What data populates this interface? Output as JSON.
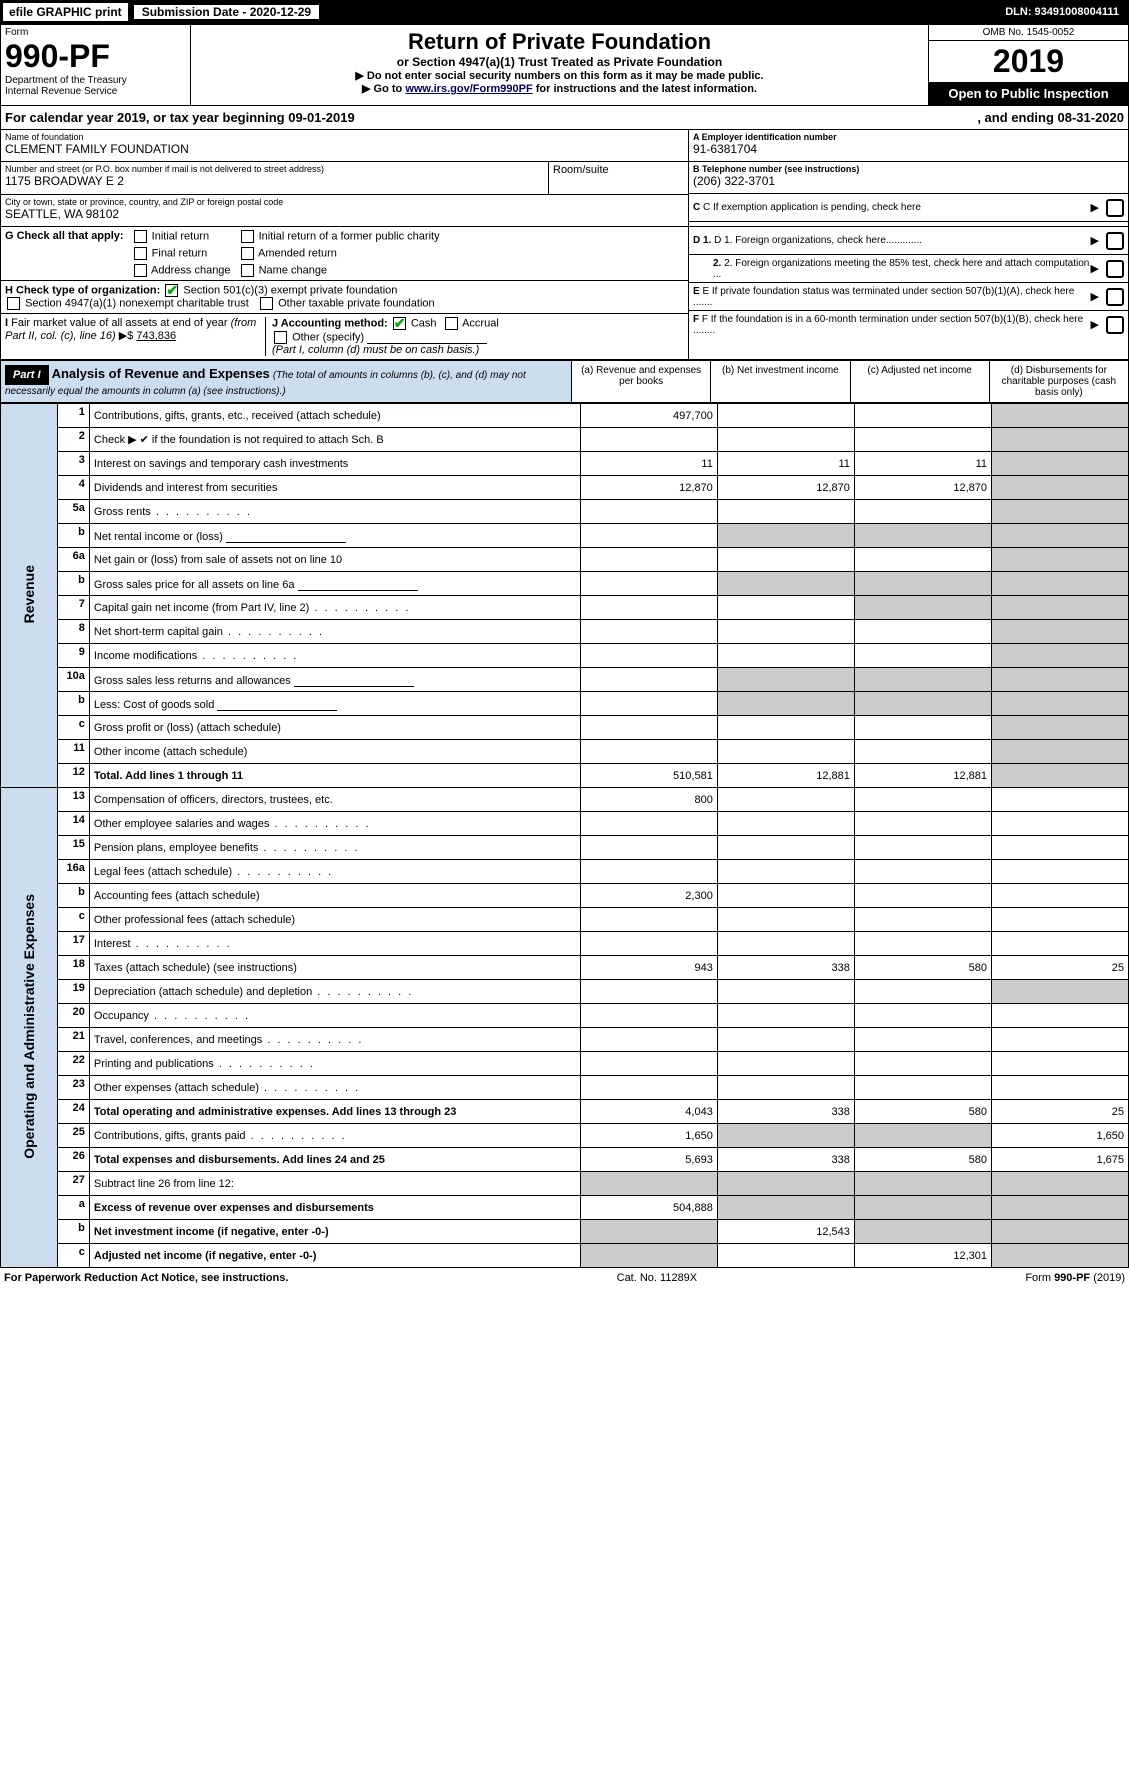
{
  "header": {
    "efile_label": "efile GRAPHIC print",
    "sub_date_label": "Submission Date - 2020-12-29",
    "dln": "DLN: 93491008004111"
  },
  "title": {
    "form_word": "Form",
    "form_num": "990-PF",
    "dept": "Department of the Treasury",
    "irs": "Internal Revenue Service",
    "main": "Return of Private Foundation",
    "sub": "or Section 4947(a)(1) Trust Treated as Private Foundation",
    "instr1": "▶ Do not enter social security numbers on this form as it may be made public.",
    "instr2_pre": "▶ Go to ",
    "instr2_link": "www.irs.gov/Form990PF",
    "instr2_post": " for instructions and the latest information.",
    "omb": "OMB No. 1545-0052",
    "year": "2019",
    "open": "Open to Public Inspection"
  },
  "cal": {
    "text1": "For calendar year 2019, or tax year beginning 09-01-2019",
    "text2": ", and ending 08-31-2020"
  },
  "info": {
    "name_lbl": "Name of foundation",
    "name": "CLEMENT FAMILY FOUNDATION",
    "addr_lbl": "Number and street (or P.O. box number if mail is not delivered to street address)",
    "addr": "1175 BROADWAY E 2",
    "room_lbl": "Room/suite",
    "city_lbl": "City or town, state or province, country, and ZIP or foreign postal code",
    "city": "SEATTLE, WA  98102",
    "a_lbl": "A Employer identification number",
    "a_val": "91-6381704",
    "b_lbl": "B Telephone number (see instructions)",
    "b_val": "(206) 322-3701",
    "c_lbl": "C  If exemption application is pending, check here",
    "d1_lbl": "D 1. Foreign organizations, check here.............",
    "d2_lbl": "2. Foreign organizations meeting the 85% test, check here and attach computation ...",
    "e_lbl": "E  If private foundation status was terminated under section 507(b)(1)(A), check here .......",
    "f_lbl": "F  If the foundation is in a 60-month termination under section 507(b)(1)(B), check here ........"
  },
  "g": {
    "lbl": "G Check all that apply:",
    "initial": "Initial return",
    "initial_former": "Initial return of a former public charity",
    "final": "Final return",
    "amended": "Amended return",
    "addr_chg": "Address change",
    "name_chg": "Name change"
  },
  "h": {
    "lbl": "H Check type of organization:",
    "c3": "Section 501(c)(3) exempt private foundation",
    "4947": "Section 4947(a)(1) nonexempt charitable trust",
    "other": "Other taxable private foundation"
  },
  "i": {
    "lbl": "I Fair market value of all assets at end of year (from Part II, col. (c), line 16) ▶$",
    "val": "743,836"
  },
  "j": {
    "lbl": "J Accounting method:",
    "cash": "Cash",
    "accrual": "Accrual",
    "other": "Other (specify)",
    "note": "(Part I, column (d) must be on cash basis.)"
  },
  "part1": {
    "hdr": "Part I",
    "title": "Analysis of Revenue and Expenses",
    "sub": "(The total of amounts in columns (b), (c), and (d) may not necessarily equal the amounts in column (a) (see instructions).)",
    "col_a": "(a) Revenue and expenses per books",
    "col_b": "(b) Net investment income",
    "col_c": "(c) Adjusted net income",
    "col_d": "(d) Disbursements for charitable purposes (cash basis only)",
    "side_rev": "Revenue",
    "side_exp": "Operating and Administrative Expenses"
  },
  "rows": {
    "r1": {
      "n": "1",
      "d": "Contributions, gifts, grants, etc., received (attach schedule)",
      "a": "497,700"
    },
    "r2": {
      "n": "2",
      "d": "Check ▶ ✔ if the foundation is not required to attach Sch. B"
    },
    "r3": {
      "n": "3",
      "d": "Interest on savings and temporary cash investments",
      "a": "11",
      "b": "11",
      "c": "11"
    },
    "r4": {
      "n": "4",
      "d": "Dividends and interest from securities",
      "a": "12,870",
      "b": "12,870",
      "c": "12,870"
    },
    "r5a": {
      "n": "5a",
      "d": "Gross rents"
    },
    "r5b": {
      "n": "b",
      "d": "Net rental income or (loss)"
    },
    "r6a": {
      "n": "6a",
      "d": "Net gain or (loss) from sale of assets not on line 10"
    },
    "r6b": {
      "n": "b",
      "d": "Gross sales price for all assets on line 6a"
    },
    "r7": {
      "n": "7",
      "d": "Capital gain net income (from Part IV, line 2)"
    },
    "r8": {
      "n": "8",
      "d": "Net short-term capital gain"
    },
    "r9": {
      "n": "9",
      "d": "Income modifications"
    },
    "r10a": {
      "n": "10a",
      "d": "Gross sales less returns and allowances"
    },
    "r10b": {
      "n": "b",
      "d": "Less: Cost of goods sold"
    },
    "r10c": {
      "n": "c",
      "d": "Gross profit or (loss) (attach schedule)"
    },
    "r11": {
      "n": "11",
      "d": "Other income (attach schedule)"
    },
    "r12": {
      "n": "12",
      "d": "Total. Add lines 1 through 11",
      "a": "510,581",
      "b": "12,881",
      "c": "12,881"
    },
    "r13": {
      "n": "13",
      "d": "Compensation of officers, directors, trustees, etc.",
      "a": "800"
    },
    "r14": {
      "n": "14",
      "d": "Other employee salaries and wages"
    },
    "r15": {
      "n": "15",
      "d": "Pension plans, employee benefits"
    },
    "r16a": {
      "n": "16a",
      "d": "Legal fees (attach schedule)"
    },
    "r16b": {
      "n": "b",
      "d": "Accounting fees (attach schedule)",
      "a": "2,300"
    },
    "r16c": {
      "n": "c",
      "d": "Other professional fees (attach schedule)"
    },
    "r17": {
      "n": "17",
      "d": "Interest"
    },
    "r18": {
      "n": "18",
      "d": "Taxes (attach schedule) (see instructions)",
      "a": "943",
      "b": "338",
      "c": "580",
      "dd": "25"
    },
    "r19": {
      "n": "19",
      "d": "Depreciation (attach schedule) and depletion"
    },
    "r20": {
      "n": "20",
      "d": "Occupancy"
    },
    "r21": {
      "n": "21",
      "d": "Travel, conferences, and meetings"
    },
    "r22": {
      "n": "22",
      "d": "Printing and publications"
    },
    "r23": {
      "n": "23",
      "d": "Other expenses (attach schedule)"
    },
    "r24": {
      "n": "24",
      "d": "Total operating and administrative expenses. Add lines 13 through 23",
      "a": "4,043",
      "b": "338",
      "c": "580",
      "dd": "25"
    },
    "r25": {
      "n": "25",
      "d": "Contributions, gifts, grants paid",
      "a": "1,650",
      "dd": "1,650"
    },
    "r26": {
      "n": "26",
      "d": "Total expenses and disbursements. Add lines 24 and 25",
      "a": "5,693",
      "b": "338",
      "c": "580",
      "dd": "1,675"
    },
    "r27": {
      "n": "27",
      "d": "Subtract line 26 from line 12:"
    },
    "r27a": {
      "n": "a",
      "d": "Excess of revenue over expenses and disbursements",
      "a": "504,888"
    },
    "r27b": {
      "n": "b",
      "d": "Net investment income (if negative, enter -0-)",
      "b": "12,543"
    },
    "r27c": {
      "n": "c",
      "d": "Adjusted net income (if negative, enter -0-)",
      "c": "12,301"
    }
  },
  "footer": {
    "left": "For Paperwork Reduction Act Notice, see instructions.",
    "mid": "Cat. No. 11289X",
    "right": "Form 990-PF (2019)"
  }
}
